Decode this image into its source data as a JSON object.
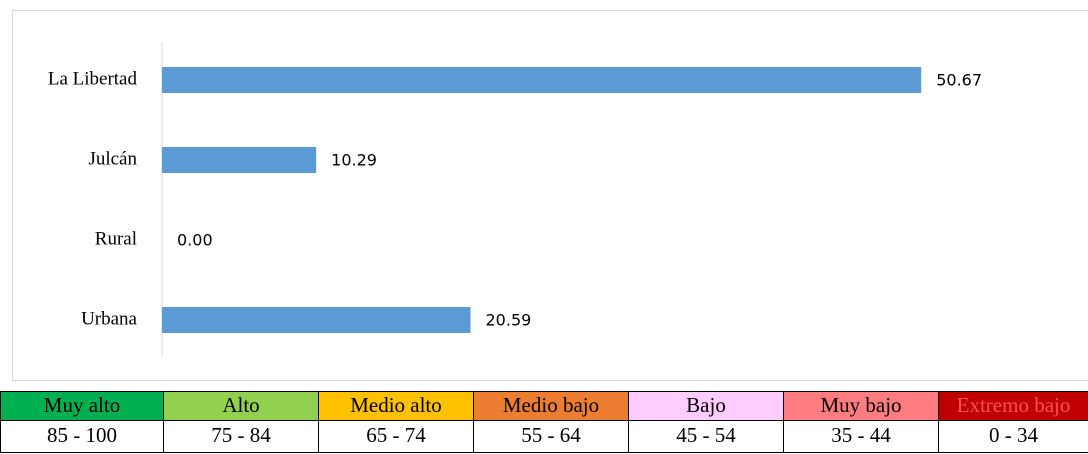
{
  "chart_data": {
    "type": "barh",
    "categories": [
      "La Libertad",
      "Julcán",
      "Rural",
      "Urbana"
    ],
    "values": [
      50.67,
      10.29,
      0,
      20.59
    ],
    "value_labels": [
      "50.67",
      "10.29",
      "0.00",
      "20.59"
    ],
    "color": "#5b9bd5",
    "xlim": [
      0,
      60
    ]
  },
  "legend_table": {
    "columns": [
      {
        "label": "Muy alto",
        "range": "85 - 100",
        "color": "#00b050",
        "text_color": "#000000"
      },
      {
        "label": "Alto",
        "range": "75 - 84",
        "color": "#92d050",
        "text_color": "#000000"
      },
      {
        "label": "Medio alto",
        "range": "65 - 74",
        "color": "#ffc000",
        "text_color": "#000000"
      },
      {
        "label": "Medio bajo",
        "range": "55 - 64",
        "color": "#ed7d31",
        "text_color": "#000000"
      },
      {
        "label": "Bajo",
        "range": "45 - 54",
        "color": "#ffccff",
        "text_color": "#000000"
      },
      {
        "label": "Muy bajo",
        "range": "35 - 44",
        "color": "#ff7c80",
        "text_color": "#000000"
      },
      {
        "label": "Extremo bajo",
        "range": "0 - 34",
        "color": "#c00000",
        "text_color": "#ff5050"
      }
    ]
  }
}
